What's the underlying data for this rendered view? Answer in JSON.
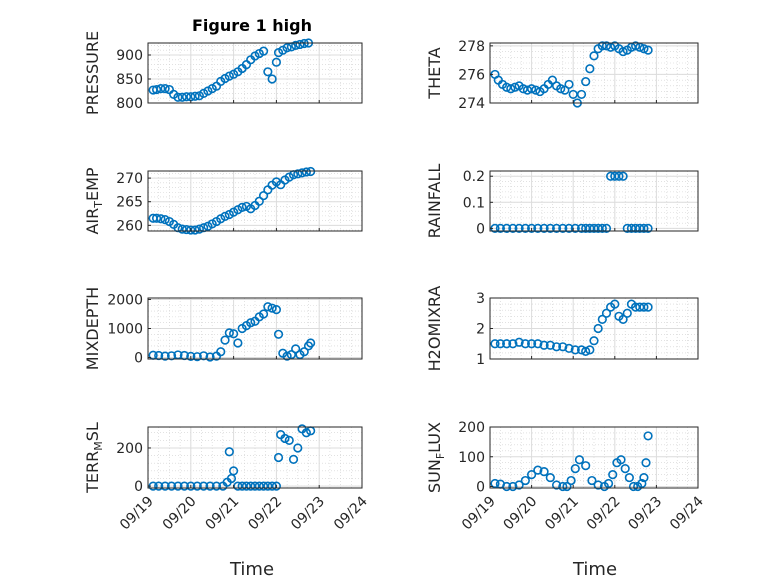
{
  "figure_title": "Figure 1 high",
  "x_axis_label": "Time",
  "x_tick_labels": [
    "09/19",
    "09/20",
    "09/21",
    "09/22",
    "09/23",
    "09/24"
  ],
  "marker_color": "#0072bd",
  "chart_data": [
    {
      "type": "scatter",
      "ylabel_main": "PRESSURE",
      "ylabel_sub": "",
      "ylabel_tail": "",
      "ylim": [
        800,
        925
      ],
      "yticks": [
        800,
        850,
        900
      ],
      "grid": "on",
      "x": [
        0.12,
        0.2,
        0.3,
        0.4,
        0.5,
        0.6,
        0.7,
        0.8,
        0.9,
        1.0,
        1.1,
        1.2,
        1.3,
        1.4,
        1.5,
        1.6,
        1.7,
        1.8,
        1.9,
        2.0,
        2.1,
        2.2,
        2.3,
        2.4,
        2.5,
        2.6,
        2.7,
        2.8,
        2.9,
        3.0,
        3.05,
        3.15,
        3.25,
        3.35,
        3.45,
        3.55,
        3.65,
        3.75
      ],
      "y": [
        827,
        828,
        830,
        830,
        828,
        818,
        812,
        812,
        813,
        813,
        814,
        815,
        820,
        825,
        830,
        835,
        845,
        851,
        856,
        860,
        865,
        872,
        880,
        890,
        898,
        903,
        908,
        865,
        850,
        885,
        905,
        910,
        915,
        917,
        920,
        922,
        924,
        925
      ]
    },
    {
      "type": "scatter",
      "ylabel_main": "THETA",
      "ylabel_sub": "",
      "ylabel_tail": "",
      "ylim": [
        274,
        278.2
      ],
      "yticks": [
        274,
        276,
        278
      ],
      "grid": "on",
      "x": [
        0.12,
        0.2,
        0.3,
        0.4,
        0.5,
        0.6,
        0.7,
        0.8,
        0.9,
        1.0,
        1.1,
        1.2,
        1.3,
        1.4,
        1.5,
        1.6,
        1.7,
        1.8,
        1.9,
        2.0,
        2.1,
        2.2,
        2.3,
        2.4,
        2.5,
        2.6,
        2.7,
        2.8,
        2.9,
        3.0,
        3.1,
        3.2,
        3.3,
        3.4,
        3.5,
        3.6,
        3.7,
        3.8
      ],
      "y": [
        276.0,
        275.6,
        275.3,
        275.1,
        275.0,
        275.1,
        275.2,
        275.0,
        274.9,
        275.0,
        274.9,
        274.8,
        275.0,
        275.3,
        275.6,
        275.2,
        275.0,
        274.9,
        275.3,
        274.6,
        274.0,
        274.6,
        275.5,
        276.4,
        277.3,
        277.8,
        278.0,
        278.0,
        277.9,
        278.0,
        277.8,
        277.6,
        277.7,
        277.9,
        278.0,
        277.9,
        277.8,
        277.7
      ]
    },
    {
      "type": "scatter",
      "ylabel_main": "AIR",
      "ylabel_sub": "T",
      "ylabel_tail": "EMP",
      "ylim": [
        258.8,
        271.5
      ],
      "yticks": [
        260,
        265,
        270
      ],
      "grid": "on",
      "x": [
        0.12,
        0.2,
        0.3,
        0.4,
        0.5,
        0.6,
        0.7,
        0.8,
        0.9,
        1.0,
        1.1,
        1.2,
        1.3,
        1.4,
        1.5,
        1.6,
        1.7,
        1.8,
        1.9,
        2.0,
        2.1,
        2.2,
        2.3,
        2.4,
        2.5,
        2.6,
        2.7,
        2.8,
        2.9,
        3.0,
        3.1,
        3.2,
        3.3,
        3.4,
        3.5,
        3.6,
        3.7,
        3.8
      ],
      "y": [
        261.5,
        261.5,
        261.4,
        261.2,
        260.8,
        260.2,
        259.5,
        259.2,
        259.1,
        259.0,
        259.0,
        259.2,
        259.5,
        259.8,
        260.3,
        260.8,
        261.4,
        261.9,
        262.3,
        262.8,
        263.3,
        263.8,
        264.0,
        263.5,
        264.2,
        265.1,
        266.3,
        267.5,
        268.5,
        269.2,
        268.6,
        269.6,
        270.2,
        270.7,
        270.9,
        271.1,
        271.3,
        271.4
      ]
    },
    {
      "type": "scatter",
      "ylabel_main": "RAINFALL",
      "ylabel_sub": "",
      "ylabel_tail": "",
      "ylim": [
        -0.01,
        0.22
      ],
      "yticks": [
        0,
        0.1,
        0.2
      ],
      "grid": "on",
      "x": [
        0.12,
        0.25,
        0.4,
        0.55,
        0.7,
        0.85,
        1.0,
        1.15,
        1.3,
        1.45,
        1.6,
        1.75,
        1.9,
        2.05,
        2.2,
        2.3,
        2.4,
        2.5,
        2.6,
        2.7,
        2.8,
        2.9,
        3.0,
        3.1,
        3.2,
        3.3,
        3.4,
        3.5,
        3.6,
        3.7,
        3.8
      ],
      "y": [
        0,
        0,
        0,
        0,
        0,
        0,
        0,
        0,
        0,
        0,
        0,
        0,
        0,
        0,
        0,
        0,
        0,
        0,
        0,
        0,
        0,
        0.2,
        0.2,
        0.2,
        0.2,
        0,
        0,
        0,
        0,
        0,
        0
      ]
    },
    {
      "type": "scatter",
      "ylabel_main": "MIXDEPTH",
      "ylabel_sub": "",
      "ylabel_tail": "",
      "ylim": [
        -50,
        2050
      ],
      "yticks": [
        0,
        1000,
        2000
      ],
      "grid": "on",
      "x": [
        0.12,
        0.25,
        0.4,
        0.55,
        0.7,
        0.85,
        1.0,
        1.15,
        1.3,
        1.45,
        1.6,
        1.7,
        1.8,
        1.9,
        2.0,
        2.1,
        2.2,
        2.3,
        2.4,
        2.5,
        2.6,
        2.7,
        2.8,
        2.9,
        3.0,
        3.05,
        3.15,
        3.25,
        3.35,
        3.45,
        3.55,
        3.65,
        3.75,
        3.8
      ],
      "y": [
        80,
        70,
        50,
        60,
        90,
        70,
        40,
        30,
        60,
        20,
        50,
        200,
        600,
        850,
        820,
        500,
        1000,
        1100,
        1200,
        1250,
        1400,
        1500,
        1750,
        1700,
        1650,
        800,
        150,
        50,
        100,
        300,
        100,
        200,
        400,
        500
      ]
    },
    {
      "type": "scatter",
      "ylabel_main": "H2OMIXRA",
      "ylabel_sub": "",
      "ylabel_tail": "",
      "ylim": [
        1,
        3
      ],
      "yticks": [
        1,
        2,
        3
      ],
      "grid": "on",
      "x": [
        0.12,
        0.25,
        0.4,
        0.55,
        0.7,
        0.85,
        1.0,
        1.15,
        1.3,
        1.45,
        1.6,
        1.75,
        1.9,
        2.05,
        2.2,
        2.3,
        2.4,
        2.5,
        2.6,
        2.7,
        2.8,
        2.9,
        3.0,
        3.1,
        3.2,
        3.3,
        3.4,
        3.5,
        3.6,
        3.7,
        3.8
      ],
      "y": [
        1.5,
        1.5,
        1.5,
        1.5,
        1.55,
        1.5,
        1.5,
        1.5,
        1.45,
        1.45,
        1.4,
        1.4,
        1.35,
        1.3,
        1.3,
        1.25,
        1.3,
        1.6,
        2.0,
        2.3,
        2.5,
        2.7,
        2.8,
        2.4,
        2.3,
        2.5,
        2.8,
        2.7,
        2.7,
        2.7,
        2.7
      ]
    },
    {
      "type": "scatter",
      "ylabel_main": "TERR",
      "ylabel_sub": "M",
      "ylabel_tail": "SL",
      "ylim": [
        -10,
        310
      ],
      "yticks": [
        0,
        200
      ],
      "grid": "on",
      "x": [
        0.12,
        0.25,
        0.4,
        0.55,
        0.7,
        0.85,
        1.0,
        1.15,
        1.3,
        1.45,
        1.6,
        1.75,
        1.85,
        1.9,
        1.95,
        2.0,
        2.1,
        2.2,
        2.3,
        2.4,
        2.5,
        2.6,
        2.7,
        2.8,
        2.9,
        3.0,
        3.05,
        3.1,
        3.2,
        3.3,
        3.4,
        3.5,
        3.6,
        3.7,
        3.8
      ],
      "y": [
        0,
        0,
        0,
        0,
        0,
        0,
        0,
        0,
        0,
        0,
        0,
        0,
        20,
        180,
        40,
        80,
        0,
        0,
        0,
        0,
        0,
        0,
        0,
        0,
        0,
        0,
        150,
        270,
        250,
        240,
        140,
        200,
        300,
        280,
        290
      ]
    },
    {
      "type": "scatter",
      "ylabel_main": "SUN",
      "ylabel_sub": "F",
      "ylabel_tail": "LUX",
      "ylim": [
        -5,
        200
      ],
      "yticks": [
        0,
        100,
        200
      ],
      "grid": "on",
      "x": [
        0.12,
        0.25,
        0.4,
        0.55,
        0.7,
        0.85,
        1.0,
        1.15,
        1.3,
        1.45,
        1.6,
        1.75,
        1.85,
        1.95,
        2.05,
        2.15,
        2.3,
        2.45,
        2.6,
        2.75,
        2.85,
        2.95,
        3.05,
        3.15,
        3.25,
        3.35,
        3.45,
        3.55,
        3.65,
        3.7,
        3.75,
        3.8
      ],
      "y": [
        10,
        8,
        0,
        0,
        5,
        20,
        40,
        55,
        50,
        30,
        5,
        0,
        0,
        20,
        60,
        90,
        70,
        20,
        5,
        0,
        10,
        40,
        80,
        90,
        60,
        30,
        0,
        0,
        10,
        30,
        80,
        170
      ]
    }
  ]
}
